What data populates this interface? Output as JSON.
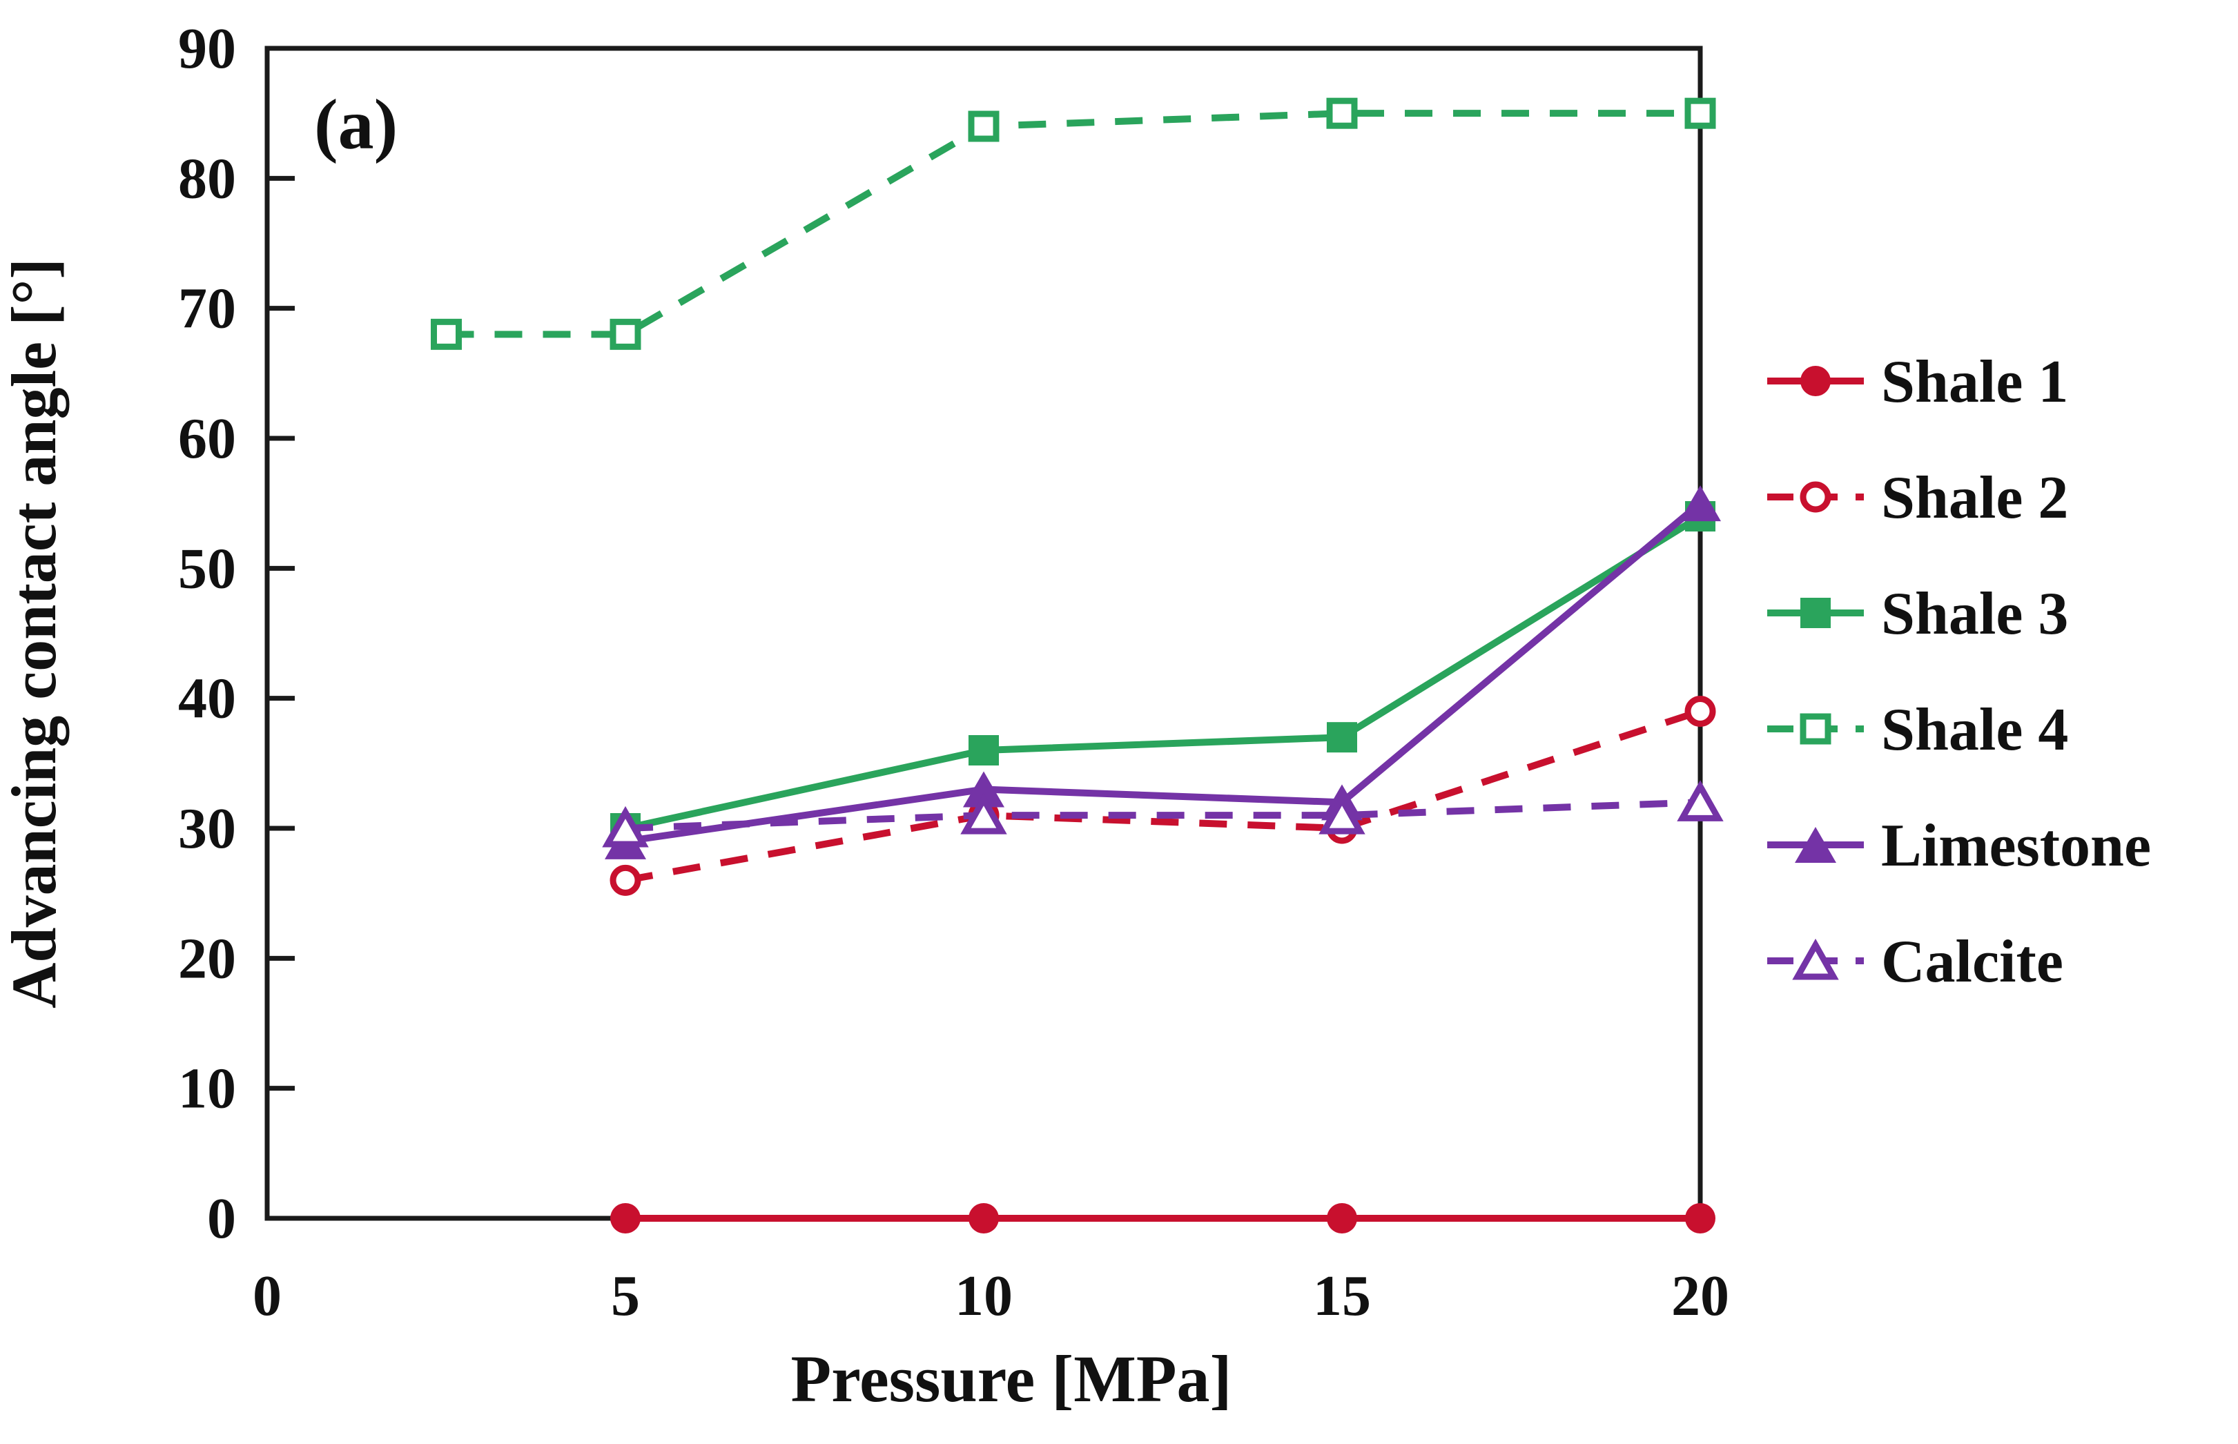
{
  "figure": {
    "panel_label": "(a)",
    "background": "#ffffff",
    "axis_color": "#1a1a1a",
    "x_axis": {
      "label": "Pressure [MPa]",
      "ticks": [
        "0",
        "5",
        "10",
        "15",
        "20"
      ],
      "tick_values": [
        0,
        5,
        10,
        15,
        20
      ],
      "range": [
        0,
        20
      ]
    },
    "y_axis": {
      "label": "Advancing contact angle [°]",
      "ticks": [
        "0",
        "10",
        "20",
        "30",
        "40",
        "50",
        "60",
        "70",
        "80",
        "90"
      ],
      "tick_values": [
        0,
        10,
        20,
        30,
        40,
        50,
        60,
        70,
        80,
        90
      ],
      "range": [
        0,
        90
      ]
    }
  },
  "chart_data": {
    "type": "line",
    "title": "",
    "xlabel": "Pressure [MPa]",
    "ylabel": "Advancing contact angle [°]",
    "xlim": [
      0,
      20
    ],
    "ylim": [
      0,
      90
    ],
    "x_ticks": [
      0,
      5,
      10,
      15,
      20
    ],
    "y_ticks": [
      0,
      10,
      20,
      30,
      40,
      50,
      60,
      70,
      80,
      90
    ],
    "grid": false,
    "legend_position": "right-outside",
    "series": [
      {
        "name": "Shale 1",
        "color": "#C8102E",
        "line": "solid",
        "marker": "circle",
        "marker_fill": "filled",
        "x": [
          5,
          10,
          15,
          20
        ],
        "y": [
          0,
          0,
          0,
          0
        ]
      },
      {
        "name": "Shale 2",
        "color": "#C8102E",
        "line": "dashed",
        "marker": "circle",
        "marker_fill": "open",
        "x": [
          5,
          10,
          15,
          20
        ],
        "y": [
          26,
          31,
          30,
          39
        ]
      },
      {
        "name": "Shale 3",
        "color": "#2AA45C",
        "line": "solid",
        "marker": "square",
        "marker_fill": "filled",
        "x": [
          5,
          10,
          15,
          20
        ],
        "y": [
          30,
          36,
          37,
          54
        ]
      },
      {
        "name": "Shale 4",
        "color": "#2AA45C",
        "line": "dashed",
        "marker": "square",
        "marker_fill": "open",
        "x": [
          2.5,
          5,
          10,
          15,
          20
        ],
        "y": [
          68,
          68,
          84,
          85,
          85
        ]
      },
      {
        "name": "Limestone",
        "color": "#7433A6",
        "line": "solid",
        "marker": "triangle",
        "marker_fill": "filled",
        "x": [
          5,
          10,
          15,
          20
        ],
        "y": [
          29,
          33,
          32,
          55
        ]
      },
      {
        "name": "Calcite",
        "color": "#7433A6",
        "line": "dashed",
        "marker": "triangle",
        "marker_fill": "open",
        "x": [
          5,
          10,
          15,
          20
        ],
        "y": [
          30,
          31,
          31,
          32
        ]
      }
    ]
  }
}
